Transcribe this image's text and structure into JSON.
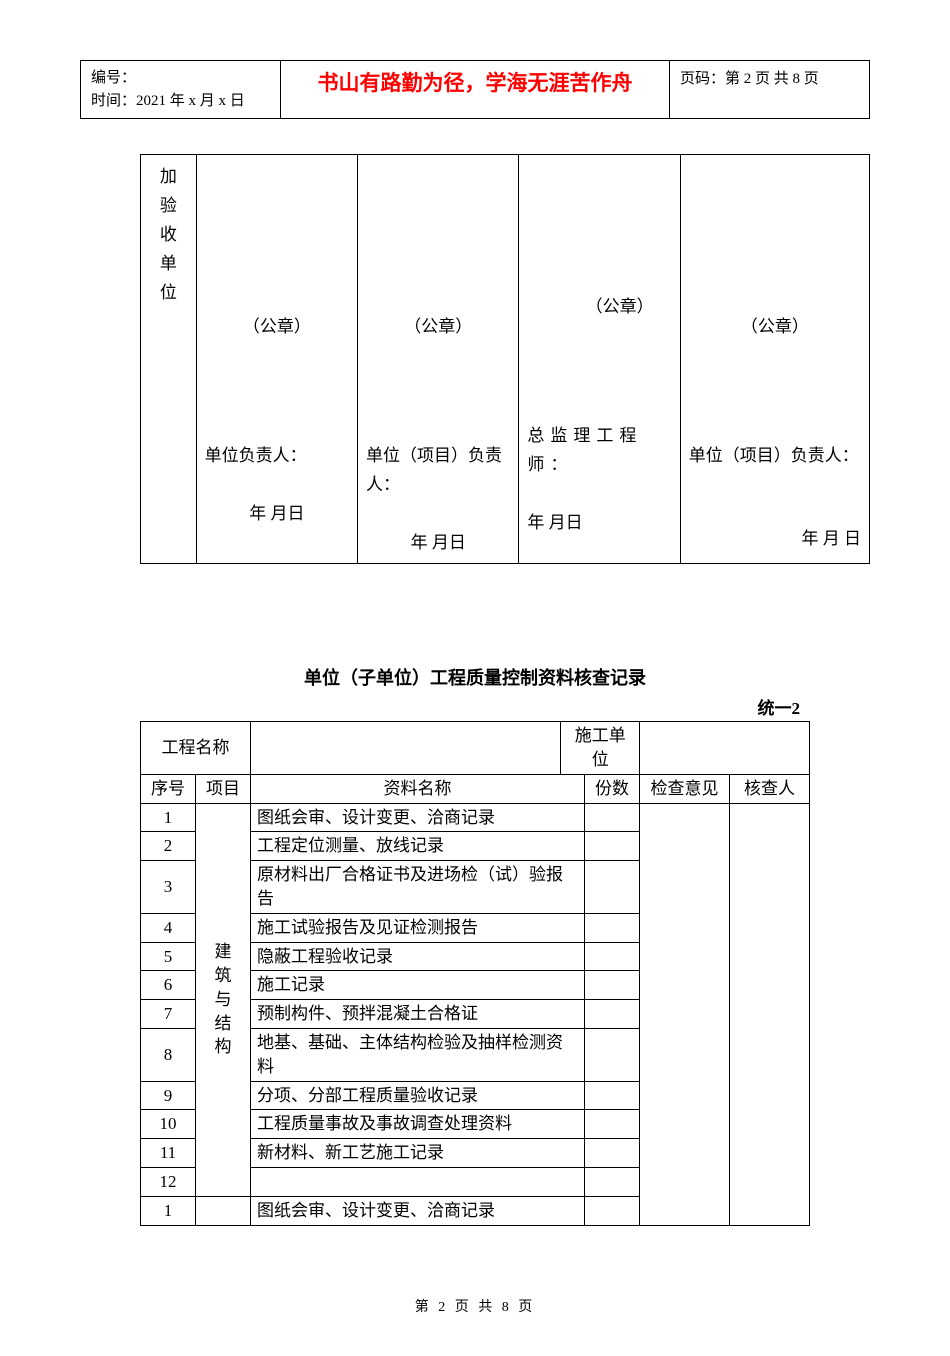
{
  "header": {
    "serial_label": "编号：",
    "time_label": "时间：2021 年 x 月 x 日",
    "motto": "书山有路勤为径，学海无涯苦作舟",
    "page_label": "页码：第 2 页 共 8 页"
  },
  "seal_table": {
    "vertical_label": "加验收单位",
    "cells": [
      {
        "seal": "（公章）",
        "responsible": "单位负责人：",
        "date": "年  月日"
      },
      {
        "seal": "（公章）",
        "responsible": "单位（项目）负责人：",
        "date": "年  月日"
      },
      {
        "seal": "（公章）",
        "responsible": "总监理工程师：",
        "date": "年    月日"
      },
      {
        "seal": "（公章）",
        "responsible": "单位（项目）负责人：",
        "date": "年  月  日"
      }
    ]
  },
  "section": {
    "title": "单位（子单位）工程质量控制资料核查记录",
    "sub": "统一2"
  },
  "data_table": {
    "top_row": {
      "project_name_label": "工程名称",
      "project_name_value": "",
      "construction_unit_label": "施工单位",
      "construction_unit_value": ""
    },
    "head": {
      "seq": "序号",
      "proj": "项目",
      "name": "资料名称",
      "count": "份数",
      "opinion": "检查意见",
      "checker": "核查人"
    },
    "category_label": "建筑与结构",
    "rows": [
      {
        "seq": "1",
        "name": "图纸会审、设计变更、洽商记录"
      },
      {
        "seq": "2",
        "name": "工程定位测量、放线记录"
      },
      {
        "seq": "3",
        "name": "原材料出厂合格证书及进场检（试）验报告"
      },
      {
        "seq": "4",
        "name": "施工试验报告及见证检测报告"
      },
      {
        "seq": "5",
        "name": "隐蔽工程验收记录"
      },
      {
        "seq": "6",
        "name": "施工记录"
      },
      {
        "seq": "7",
        "name": "预制构件、预拌混凝土合格证"
      },
      {
        "seq": "8",
        "name": "地基、基础、主体结构检验及抽样检测资料"
      },
      {
        "seq": "9",
        "name": "分项、分部工程质量验收记录"
      },
      {
        "seq": "10",
        "name": "工程质量事故及事故调查处理资料"
      },
      {
        "seq": "11",
        "name": "新材料、新工艺施工记录"
      },
      {
        "seq": "12",
        "name": ""
      }
    ],
    "extra_row": {
      "seq": "1",
      "name": "图纸会审、设计变更、洽商记录"
    }
  },
  "footer": "第 2 页 共 8 页"
}
